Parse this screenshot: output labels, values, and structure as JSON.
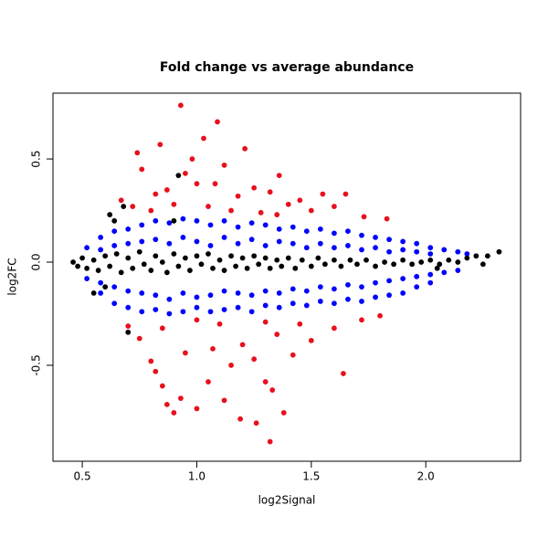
{
  "chart_data": {
    "type": "scatter",
    "title": "Fold change vs average abundance",
    "x_label": "log2Signal",
    "y_label": "log2FC",
    "xlim": [
      0.372,
      2.414
    ],
    "ylim": [
      -0.965,
      0.819
    ],
    "xticks": [
      0.5,
      {
        "value": 1.0,
        "label": "1.0"
      },
      1.5,
      {
        "value": 2.0,
        "label": "2.0"
      }
    ],
    "yticks": [
      -0.5,
      {
        "value": 0.0,
        "label": "0.0"
      },
      0.5
    ],
    "series": [
      {
        "color": "#e8101e",
        "x": [
          0.93,
          1.09,
          1.03,
          0.84,
          1.21,
          0.74,
          1.36,
          0.98,
          1.12,
          0.76,
          0.95,
          1.08,
          1.0,
          1.25,
          1.55,
          1.65,
          1.45,
          0.87,
          0.82,
          1.18,
          1.32,
          1.4,
          0.67,
          0.72,
          1.6,
          1.73,
          1.83,
          1.05,
          1.15,
          1.28,
          0.8,
          0.9,
          1.5,
          1.35,
          1.32,
          1.26,
          1.38,
          1.19,
          0.9,
          0.87,
          1.0,
          1.12,
          0.93,
          1.33,
          1.3,
          1.05,
          0.85,
          0.82,
          1.64,
          1.15,
          1.25,
          1.42,
          0.8,
          0.95,
          1.07,
          1.2,
          1.5,
          0.75,
          1.35,
          0.85,
          1.6,
          1.1,
          1.72,
          1.3,
          1.45,
          0.7,
          1.0,
          1.8
        ],
        "values": [
          0.76,
          0.68,
          0.6,
          0.57,
          0.55,
          0.53,
          0.42,
          0.5,
          0.47,
          0.45,
          0.43,
          0.38,
          0.38,
          0.36,
          0.33,
          0.33,
          0.3,
          0.35,
          0.33,
          0.32,
          0.34,
          0.28,
          0.3,
          0.27,
          0.27,
          0.22,
          0.21,
          0.27,
          0.25,
          0.24,
          0.25,
          0.28,
          0.25,
          0.23,
          -0.87,
          -0.78,
          -0.73,
          -0.76,
          -0.73,
          -0.69,
          -0.71,
          -0.67,
          -0.66,
          -0.62,
          -0.58,
          -0.58,
          -0.6,
          -0.53,
          -0.54,
          -0.5,
          -0.47,
          -0.45,
          -0.48,
          -0.44,
          -0.42,
          -0.4,
          -0.38,
          -0.37,
          -0.35,
          -0.32,
          -0.32,
          -0.3,
          -0.28,
          -0.29,
          -0.3,
          -0.31,
          -0.28,
          -0.26
        ]
      },
      {
        "color": "#0000ff",
        "x": [
          0.52,
          0.52,
          0.58,
          0.58,
          0.58,
          0.58,
          0.64,
          0.64,
          0.64,
          0.64,
          0.7,
          0.7,
          0.7,
          0.7,
          0.76,
          0.76,
          0.76,
          0.76,
          0.82,
          0.82,
          0.82,
          0.82,
          0.88,
          0.88,
          0.88,
          0.88,
          0.94,
          0.94,
          0.94,
          0.94,
          1.0,
          1.0,
          1.0,
          1.0,
          1.06,
          1.06,
          1.06,
          1.06,
          1.12,
          1.12,
          1.12,
          1.12,
          1.18,
          1.18,
          1.18,
          1.18,
          1.24,
          1.24,
          1.24,
          1.24,
          1.3,
          1.3,
          1.3,
          1.3,
          1.36,
          1.36,
          1.36,
          1.36,
          1.42,
          1.42,
          1.42,
          1.42,
          1.48,
          1.48,
          1.48,
          1.48,
          1.54,
          1.54,
          1.54,
          1.54,
          1.6,
          1.6,
          1.6,
          1.6,
          1.66,
          1.66,
          1.66,
          1.66,
          1.72,
          1.72,
          1.72,
          1.72,
          1.78,
          1.78,
          1.78,
          1.78,
          1.84,
          1.84,
          1.84,
          1.84,
          1.9,
          1.9,
          1.9,
          1.9,
          1.96,
          1.96,
          1.96,
          1.96,
          2.02,
          2.02,
          2.02,
          2.02,
          2.08,
          2.08,
          2.14,
          2.14,
          2.18
        ],
        "values": [
          0.07,
          -0.08,
          0.12,
          0.06,
          -0.1,
          -0.15,
          0.15,
          0.08,
          -0.12,
          -0.2,
          0.16,
          0.09,
          -0.14,
          -0.22,
          0.18,
          0.1,
          -0.15,
          -0.24,
          0.2,
          0.11,
          -0.16,
          -0.23,
          0.19,
          0.09,
          -0.18,
          -0.25,
          0.21,
          0.12,
          -0.15,
          -0.24,
          0.2,
          0.1,
          -0.17,
          -0.22,
          0.18,
          0.08,
          -0.16,
          -0.24,
          0.2,
          0.12,
          -0.14,
          -0.23,
          0.17,
          0.09,
          -0.15,
          -0.22,
          0.19,
          0.11,
          -0.16,
          -0.24,
          0.18,
          0.08,
          -0.14,
          -0.21,
          0.16,
          0.1,
          -0.15,
          -0.22,
          0.17,
          0.09,
          -0.13,
          -0.2,
          0.15,
          0.07,
          -0.14,
          -0.21,
          0.16,
          0.09,
          -0.12,
          -0.19,
          0.14,
          0.07,
          -0.13,
          -0.2,
          0.15,
          0.08,
          -0.11,
          -0.18,
          0.13,
          0.06,
          -0.12,
          -0.19,
          0.12,
          0.07,
          -0.1,
          -0.17,
          0.11,
          0.05,
          -0.09,
          -0.16,
          0.1,
          0.06,
          -0.08,
          -0.15,
          0.09,
          0.05,
          -0.07,
          -0.12,
          0.07,
          0.04,
          -0.06,
          -0.1,
          0.06,
          -0.05,
          0.05,
          -0.04,
          0.04
        ]
      },
      {
        "color": "#000000",
        "x": [
          0.46,
          0.48,
          0.5,
          0.52,
          0.55,
          0.57,
          0.6,
          0.62,
          0.65,
          0.67,
          0.7,
          0.72,
          0.75,
          0.77,
          0.8,
          0.82,
          0.85,
          0.87,
          0.9,
          0.92,
          0.95,
          0.97,
          1.0,
          1.02,
          1.05,
          1.07,
          1.1,
          1.12,
          1.15,
          1.17,
          1.2,
          1.22,
          1.25,
          1.27,
          1.3,
          1.32,
          1.35,
          1.37,
          1.4,
          1.43,
          1.46,
          1.5,
          1.53,
          1.56,
          1.6,
          1.63,
          1.67,
          1.7,
          1.74,
          1.78,
          1.82,
          1.86,
          1.9,
          1.94,
          1.98,
          2.02,
          2.06,
          2.1,
          2.14,
          2.18,
          2.22,
          2.27,
          2.32,
          2.25,
          2.05,
          0.62,
          0.68,
          0.92,
          0.7,
          0.55,
          0.6,
          0.9,
          0.64
        ],
        "values": [
          0.0,
          -0.02,
          0.02,
          -0.03,
          0.01,
          -0.04,
          0.03,
          -0.02,
          0.04,
          -0.05,
          0.02,
          -0.03,
          0.05,
          -0.01,
          -0.04,
          0.03,
          0.0,
          -0.05,
          0.04,
          -0.02,
          0.02,
          -0.04,
          0.03,
          -0.01,
          0.04,
          -0.03,
          0.01,
          -0.04,
          0.03,
          -0.02,
          0.02,
          -0.03,
          0.03,
          -0.01,
          0.02,
          -0.03,
          0.01,
          -0.02,
          0.02,
          -0.03,
          0.01,
          -0.02,
          0.02,
          -0.01,
          0.01,
          -0.02,
          0.01,
          -0.01,
          0.01,
          -0.02,
          0.0,
          -0.01,
          0.01,
          -0.01,
          0.0,
          0.01,
          -0.01,
          0.01,
          0.0,
          0.02,
          0.03,
          0.03,
          0.05,
          -0.01,
          -0.03,
          0.23,
          0.27,
          0.42,
          -0.34,
          -0.15,
          -0.12,
          0.2,
          0.2
        ]
      }
    ]
  }
}
